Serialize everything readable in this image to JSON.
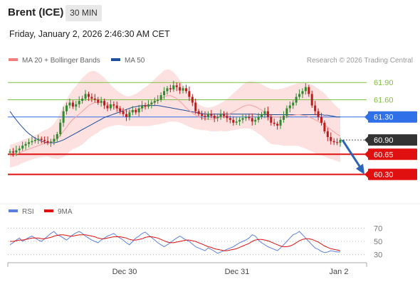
{
  "header": {
    "instrument": "Brent (ICE)",
    "timeframe": "30 MIN",
    "timestamp": "Friday, January 2, 2026 2:46:30 AM CET"
  },
  "legend": {
    "ma20_label": "MA 20 + Bollinger Bands",
    "ma50_label": "MA 50",
    "rsi_label": "RSI",
    "rsi_ma_label": "9MA"
  },
  "credit": "Research © 2026 Trading Central",
  "colors": {
    "candle_up": "#2e8b2e",
    "candle_down": "#c21a1a",
    "bollinger_fill": "#fde0e0",
    "ma20": "#f4a0a0",
    "ma50": "#1f4e9a",
    "support": "#e01010",
    "resistance": "#7fbf3f",
    "pivot": "#2f6fe8",
    "arrow": "#2a63b8",
    "last_price_tag": "#333333",
    "rsi": "#5b7fdc",
    "rsi_ma": "#e01010"
  },
  "chart_data": [
    {
      "type": "line",
      "chart": "price",
      "y_range": [
        59.85,
        62.15
      ],
      "y_ticks": [
        "61.90",
        "61.60",
        "61.30",
        "60.90",
        "60.65",
        "60.30"
      ],
      "levels": [
        {
          "value": 61.9,
          "label": "61.90",
          "kind": "resistance"
        },
        {
          "value": 61.6,
          "label": "61.60",
          "kind": "resistance"
        },
        {
          "value": 61.3,
          "label": "61.30",
          "kind": "pivot"
        },
        {
          "value": 60.9,
          "label": "60.90",
          "kind": "last-price"
        },
        {
          "value": 60.65,
          "label": "60.65",
          "kind": "support"
        },
        {
          "value": 60.3,
          "label": "60.30",
          "kind": "support"
        }
      ],
      "x_labels": [
        "Dec 30",
        "Dec 31",
        "Jan 2"
      ],
      "close_series": [
        60.7,
        60.68,
        60.72,
        60.75,
        60.8,
        60.83,
        60.86,
        60.88,
        60.9,
        60.92,
        60.9,
        60.88,
        60.85,
        60.87,
        60.92,
        61.0,
        61.2,
        61.4,
        61.5,
        61.55,
        61.48,
        61.52,
        61.58,
        61.62,
        61.7,
        61.65,
        61.62,
        61.6,
        61.55,
        61.58,
        61.5,
        61.45,
        61.52,
        61.5,
        61.45,
        61.4,
        61.35,
        61.3,
        61.38,
        61.42,
        61.38,
        61.45,
        61.5,
        61.48,
        61.52,
        61.55,
        61.58,
        61.6,
        61.68,
        61.75,
        61.8,
        61.78,
        61.85,
        61.82,
        61.76,
        61.8,
        61.75,
        61.65,
        61.55,
        61.4,
        61.35,
        61.32,
        61.3,
        61.35,
        61.32,
        61.28,
        61.3,
        61.35,
        61.32,
        61.28,
        61.25,
        61.2,
        61.22,
        61.25,
        61.28,
        61.3,
        61.28,
        61.22,
        61.25,
        61.3,
        61.35,
        61.4,
        61.3,
        61.2,
        61.18,
        61.15,
        61.25,
        61.32,
        61.45,
        61.5,
        61.55,
        61.65,
        61.7,
        61.75,
        61.82,
        61.7,
        61.5,
        61.4,
        61.3,
        61.2,
        61.05,
        60.95,
        60.88,
        60.86,
        60.85,
        60.9
      ],
      "ma20": [
        60.62,
        60.63,
        60.65,
        60.67,
        60.7,
        60.72,
        60.74,
        60.76,
        60.78,
        60.8,
        60.82,
        60.84,
        60.85,
        60.86,
        60.88,
        60.92,
        60.98,
        61.05,
        61.12,
        61.2,
        61.26,
        61.3,
        61.35,
        61.4,
        61.45,
        61.5,
        61.53,
        61.55,
        61.55,
        61.55,
        61.54,
        61.52,
        61.5,
        61.48,
        61.46,
        61.44,
        61.42,
        61.4,
        61.4,
        61.41,
        61.42,
        61.44,
        61.46,
        61.48,
        61.5,
        61.53,
        61.56,
        61.59,
        61.62,
        61.65,
        61.67,
        61.67,
        61.65,
        61.62,
        61.57,
        61.52,
        61.46,
        61.41,
        61.37,
        61.33,
        61.3,
        61.28,
        61.27,
        61.26,
        61.26,
        61.27,
        61.28,
        61.3,
        61.31,
        61.33,
        61.36,
        61.39,
        61.42,
        61.45,
        61.48,
        61.5,
        61.51,
        61.5,
        61.48,
        61.45,
        61.42,
        61.38,
        61.34,
        61.31,
        61.3,
        61.3,
        61.3,
        61.3,
        61.31,
        61.32,
        61.33,
        61.34,
        61.34,
        61.33,
        61.32,
        61.3,
        61.28,
        61.25,
        61.22,
        61.19,
        61.16,
        61.12,
        61.08,
        61.04,
        61.0,
        60.97
      ],
      "ma50": [
        61.4,
        61.32,
        61.25,
        61.18,
        61.12,
        61.06,
        61.01,
        60.97,
        60.93,
        60.9,
        60.88,
        60.86,
        60.85,
        60.85,
        60.85,
        60.86,
        60.88,
        60.9,
        60.93,
        60.96,
        60.99,
        61.02,
        61.05,
        61.08,
        61.11,
        61.14,
        61.17,
        61.2,
        61.23,
        61.26,
        61.29,
        61.31,
        61.33,
        61.35,
        61.37,
        61.39,
        61.41,
        61.43,
        61.45,
        61.47,
        61.48,
        61.49,
        61.5,
        61.5,
        61.5,
        61.5,
        61.5,
        61.5,
        61.49,
        61.48,
        61.47,
        61.46,
        61.45,
        61.44,
        61.43,
        61.42,
        61.41,
        61.4,
        61.39,
        61.38,
        61.37,
        61.36,
        61.35,
        61.35,
        61.35,
        61.35,
        61.35,
        61.35,
        61.35,
        61.35,
        61.35,
        61.35,
        61.35,
        61.35,
        61.35,
        61.35,
        61.35,
        61.35,
        61.35,
        61.34,
        61.34,
        61.34,
        61.34,
        61.34,
        61.34,
        61.34,
        61.34,
        61.34,
        61.34,
        61.34,
        61.34,
        61.34,
        61.34,
        61.34,
        61.34,
        61.34,
        61.34,
        61.34,
        61.34,
        61.34,
        61.33,
        61.33,
        61.32,
        61.31,
        61.3,
        61.3
      ],
      "bb_width": [
        0.2,
        0.2,
        0.2,
        0.2,
        0.2,
        0.2,
        0.2,
        0.2,
        0.2,
        0.21,
        0.22,
        0.23,
        0.24,
        0.27,
        0.3,
        0.35,
        0.4,
        0.45,
        0.48,
        0.5,
        0.52,
        0.54,
        0.56,
        0.58,
        0.58,
        0.58,
        0.57,
        0.55,
        0.52,
        0.48,
        0.44,
        0.4,
        0.36,
        0.33,
        0.3,
        0.28,
        0.27,
        0.26,
        0.26,
        0.27,
        0.28,
        0.3,
        0.32,
        0.34,
        0.36,
        0.38,
        0.4,
        0.42,
        0.44,
        0.46,
        0.46,
        0.45,
        0.43,
        0.4,
        0.37,
        0.34,
        0.31,
        0.28,
        0.26,
        0.24,
        0.22,
        0.21,
        0.2,
        0.2,
        0.21,
        0.22,
        0.23,
        0.24,
        0.26,
        0.28,
        0.3,
        0.32,
        0.34,
        0.36,
        0.38,
        0.4,
        0.41,
        0.42,
        0.43,
        0.44,
        0.45,
        0.46,
        0.47,
        0.48,
        0.48,
        0.48,
        0.49,
        0.5,
        0.51,
        0.52,
        0.53,
        0.54,
        0.55,
        0.56,
        0.57,
        0.58,
        0.58,
        0.58,
        0.57,
        0.56,
        0.55,
        0.53,
        0.51,
        0.49,
        0.47,
        0.46
      ],
      "forecast": {
        "from": 60.9,
        "to": 60.3
      }
    },
    {
      "type": "line",
      "chart": "rsi",
      "y_range": [
        20,
        80
      ],
      "y_ticks": [
        70,
        50,
        30
      ],
      "series": [
        {
          "name": "RSI",
          "values": [
            45,
            48,
            52,
            55,
            50,
            53,
            56,
            58,
            55,
            52,
            50,
            54,
            58,
            62,
            65,
            60,
            58,
            55,
            52,
            56,
            60,
            63,
            65,
            62,
            58,
            55,
            52,
            50,
            48,
            52,
            55,
            58,
            60,
            62,
            58,
            55,
            52,
            48,
            45,
            50,
            55,
            58,
            62,
            64,
            60,
            56,
            52,
            48,
            45,
            42,
            45,
            48,
            52,
            55,
            58,
            55,
            52,
            50,
            46,
            42,
            40,
            38,
            36,
            40,
            38,
            35,
            32,
            34,
            36,
            38,
            40,
            42,
            45,
            48,
            50,
            52,
            55,
            60,
            58,
            52,
            48,
            45,
            42,
            40,
            38,
            36,
            40,
            45,
            50,
            55,
            60,
            62,
            65,
            60,
            55,
            50,
            45,
            40,
            38,
            35,
            33,
            34,
            36,
            35,
            34,
            34
          ]
        },
        {
          "name": "9MA",
          "values": [
            50,
            50,
            51,
            52,
            52,
            53,
            54,
            55,
            55,
            55,
            54,
            54,
            55,
            56,
            58,
            59,
            60,
            60,
            59,
            58,
            58,
            59,
            60,
            60,
            60,
            59,
            58,
            57,
            55,
            54,
            54,
            55,
            56,
            57,
            57,
            57,
            56,
            55,
            53,
            52,
            52,
            53,
            54,
            56,
            57,
            57,
            56,
            55,
            53,
            51,
            49,
            48,
            48,
            49,
            50,
            51,
            52,
            52,
            51,
            50,
            48,
            46,
            44,
            42,
            41,
            39,
            38,
            37,
            36,
            36,
            37,
            38,
            39,
            41,
            43,
            45,
            47,
            50,
            52,
            53,
            53,
            52,
            51,
            49,
            47,
            45,
            43,
            42,
            42,
            43,
            45,
            48,
            51,
            53,
            54,
            54,
            53,
            51,
            49,
            46,
            43,
            41,
            39,
            38,
            37,
            36
          ]
        }
      ]
    }
  ]
}
